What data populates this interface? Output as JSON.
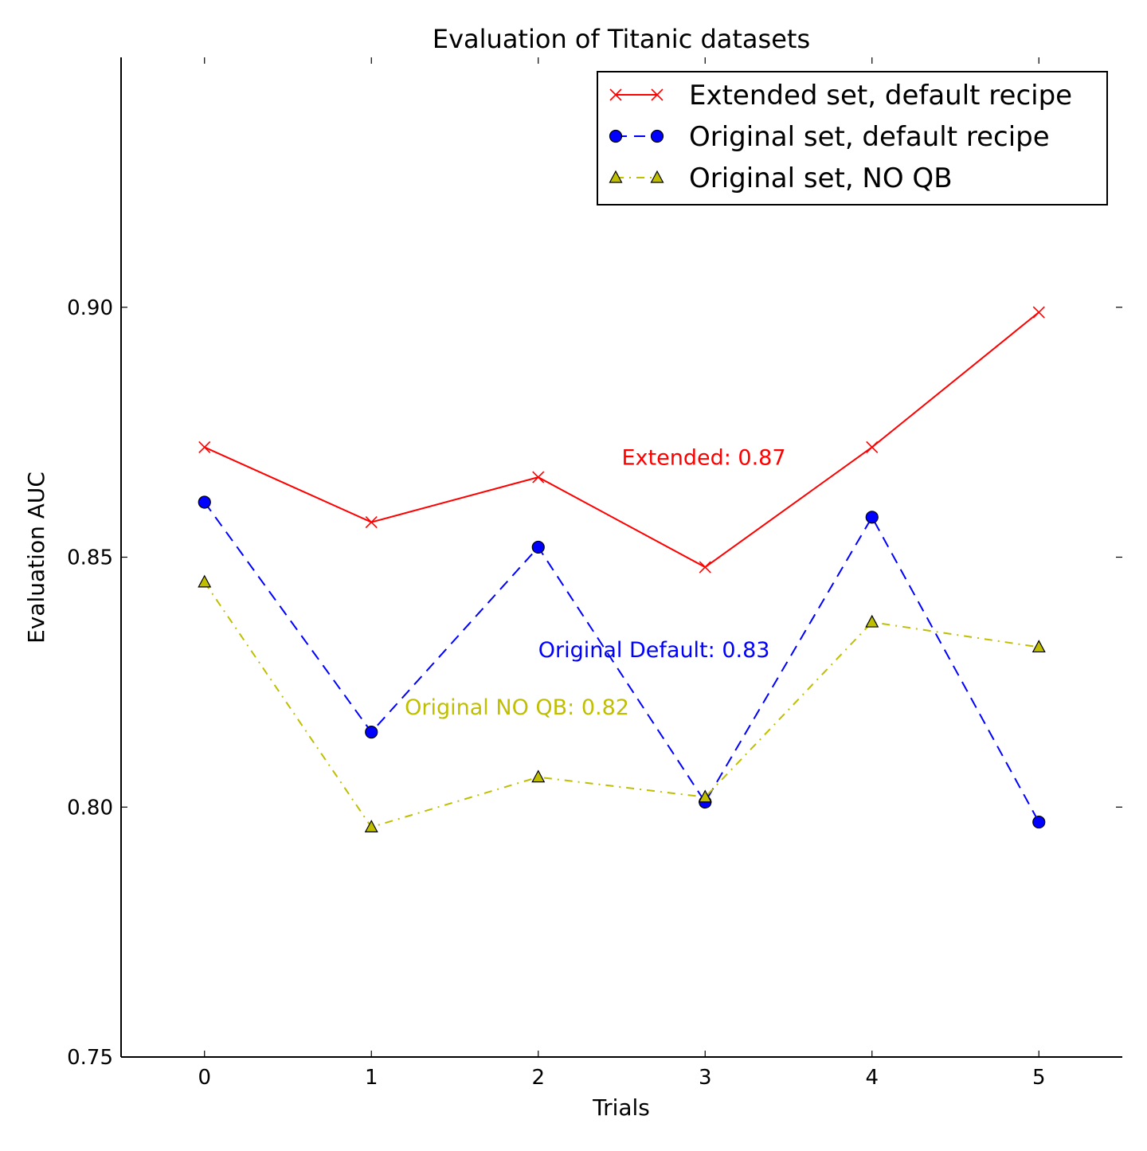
{
  "chart_data": {
    "type": "line",
    "title": "Evaluation of Titanic datasets",
    "xlabel": "Trials",
    "ylabel": "Evaluation AUC",
    "x": [
      0,
      1,
      2,
      3,
      4,
      5
    ],
    "xlim": [
      -0.5,
      5.5
    ],
    "ylim": [
      0.75,
      0.95
    ],
    "xticks": [
      0,
      1,
      2,
      3,
      4,
      5
    ],
    "xtick_labels": [
      "0",
      "1",
      "2",
      "3",
      "4",
      "5"
    ],
    "yticks": [
      0.75,
      0.8,
      0.85,
      0.9
    ],
    "ytick_labels": [
      "0.75",
      "0.80",
      "0.85",
      "0.90"
    ],
    "grid": false,
    "legend_position": "top-right",
    "series": [
      {
        "name": "Extended set, default recipe",
        "values": [
          0.872,
          0.857,
          0.866,
          0.848,
          0.872,
          0.899
        ],
        "color": "#ff0000",
        "linestyle": "solid",
        "marker": "x"
      },
      {
        "name": "Original set, default recipe",
        "values": [
          0.861,
          0.815,
          0.852,
          0.801,
          0.858,
          0.797
        ],
        "color": "#0000ff",
        "linestyle": "dashed",
        "marker": "circle"
      },
      {
        "name": "Original set, NO QB",
        "values": [
          0.845,
          0.796,
          0.806,
          0.802,
          0.837,
          0.832
        ],
        "color": "#bfbf00",
        "linestyle": "dashdot",
        "marker": "triangle"
      }
    ],
    "annotations": [
      {
        "text": "Extended: 0.87",
        "x": 2.5,
        "y": 0.8685,
        "color": "#ff0000"
      },
      {
        "text": "Original Default: 0.83",
        "x": 2.0,
        "y": 0.83,
        "color": "#0000ff"
      },
      {
        "text": "Original NO QB: 0.82",
        "x": 1.2,
        "y": 0.8185,
        "color": "#bfbf00"
      }
    ]
  }
}
